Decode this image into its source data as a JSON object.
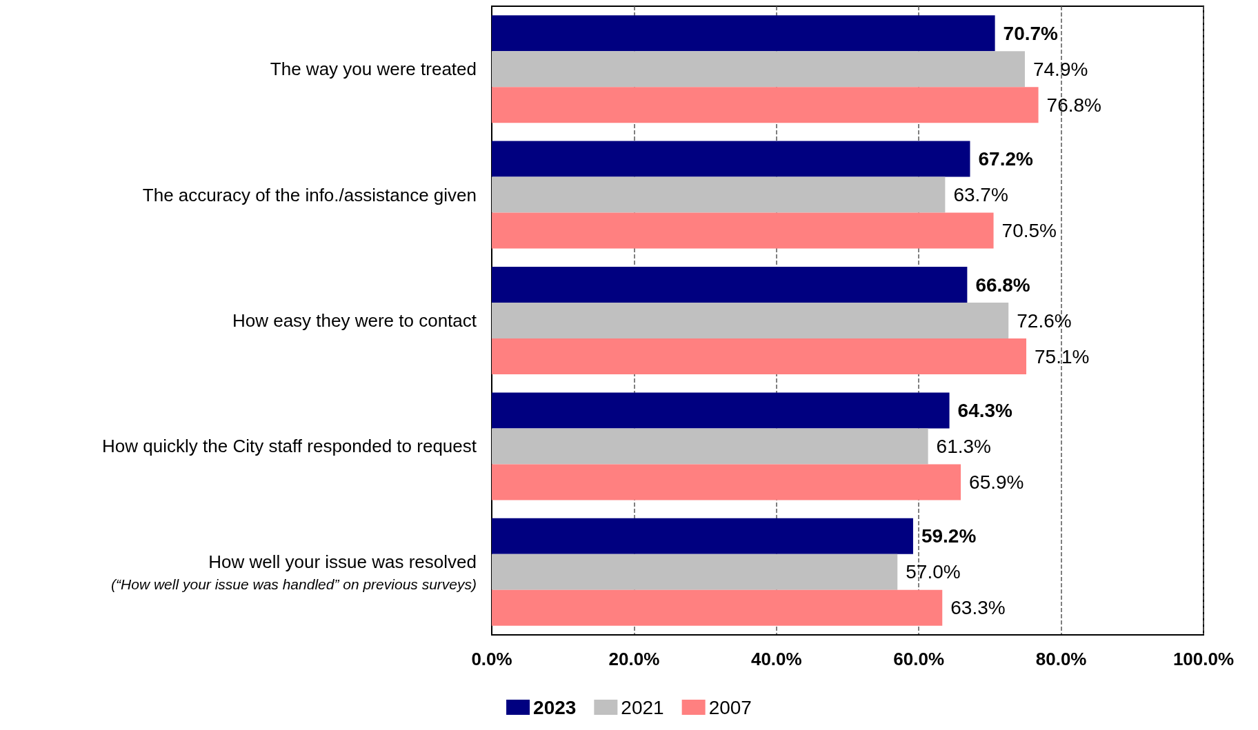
{
  "chart_data": {
    "type": "bar",
    "orientation": "horizontal",
    "categories": [
      "The way you were treated",
      "The accuracy of the info./assistance given",
      "How easy they were to contact",
      "How quickly the City staff responded to request",
      "How well your issue was resolved\n(“How well your issue was handled” on previous surveys)"
    ],
    "series": [
      {
        "name": "2023",
        "color": "#000080",
        "values": [
          70.7,
          67.2,
          66.8,
          64.3,
          59.2
        ],
        "value_labels": [
          "70.7%",
          "67.2%",
          "66.8%",
          "64.3%",
          "59.2%"
        ]
      },
      {
        "name": "2021",
        "color": "#c0c0c0",
        "values": [
          74.9,
          63.7,
          72.6,
          61.3,
          57.0
        ],
        "value_labels": [
          "74.9%",
          "63.7%",
          "72.6%",
          "61.3%",
          "57.0%"
        ]
      },
      {
        "name": "2007",
        "color": "#ff8080",
        "values": [
          76.8,
          70.5,
          75.1,
          65.9,
          63.3
        ],
        "value_labels": [
          "76.8%",
          "70.5%",
          "75.1%",
          "65.9%",
          "63.3%"
        ]
      }
    ],
    "xlim": [
      0,
      100
    ],
    "xticks": [
      {
        "value": 0,
        "label": "0.0%"
      },
      {
        "value": 20,
        "label": "20.0%"
      },
      {
        "value": 40,
        "label": "40.0%"
      },
      {
        "value": 60,
        "label": "60.0%"
      },
      {
        "value": 80,
        "label": "80.0%"
      },
      {
        "value": 100,
        "label": "100.0%"
      }
    ],
    "grid": "x",
    "legend": "bottom"
  }
}
